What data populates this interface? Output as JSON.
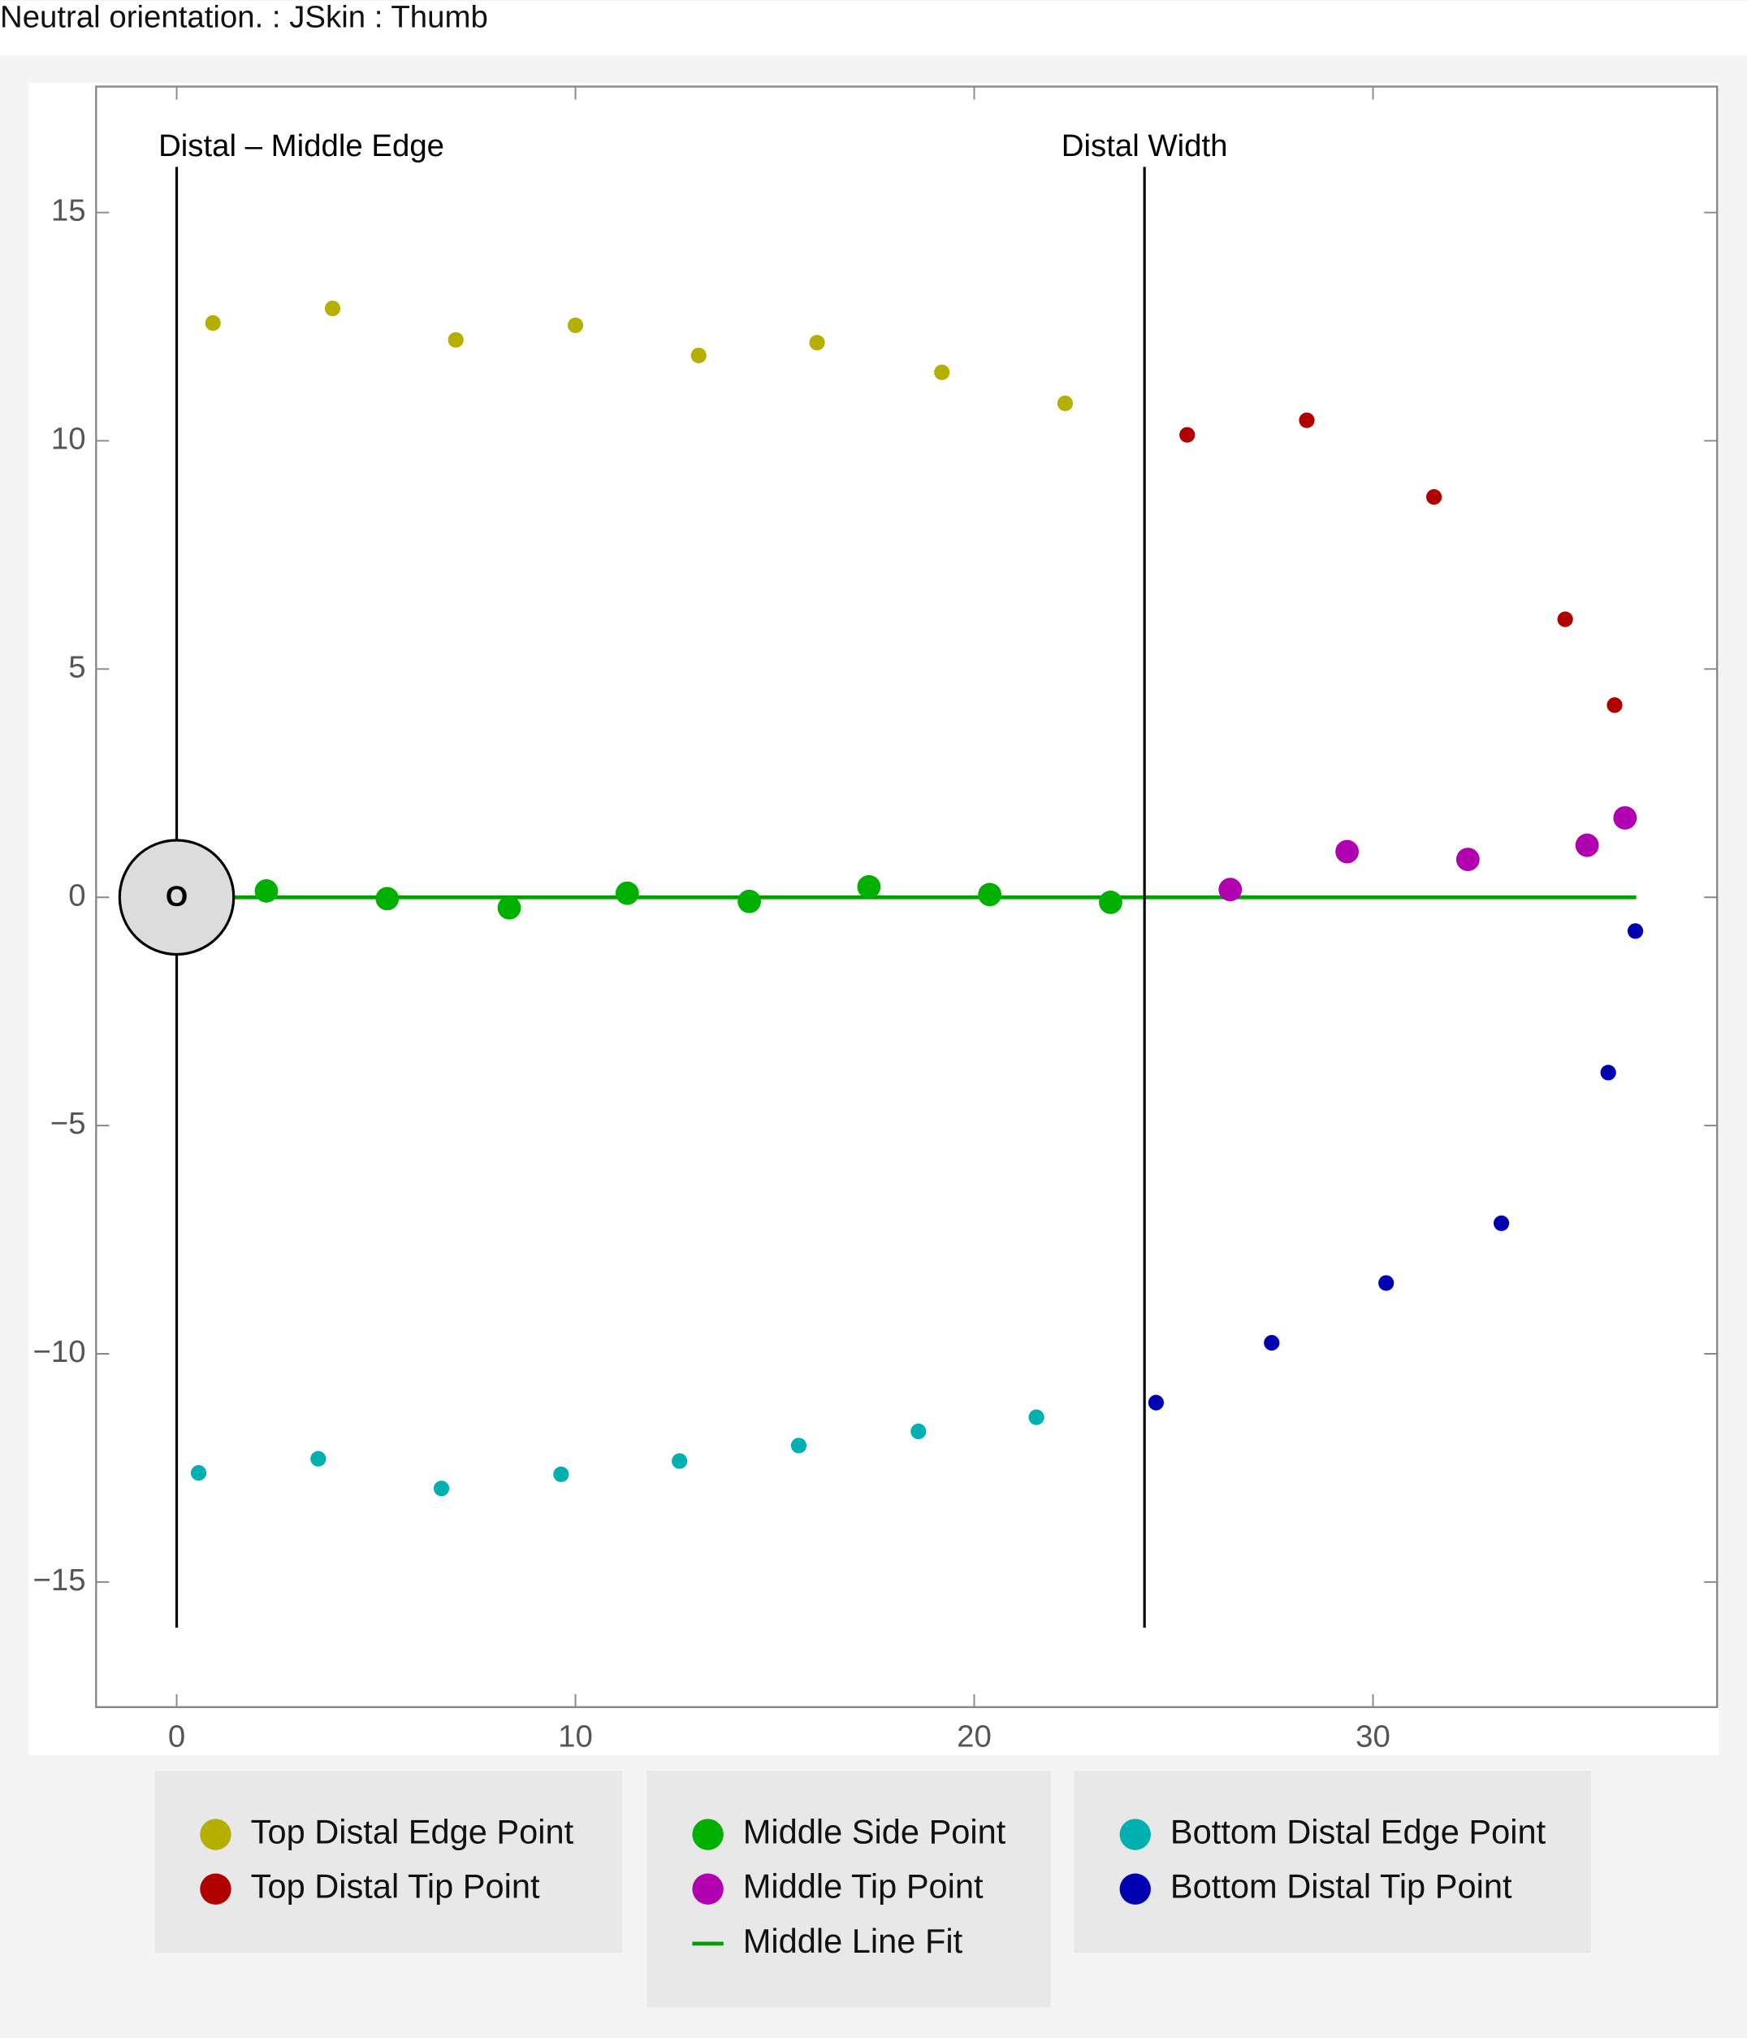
{
  "chart_data": {
    "type": "scatter",
    "title": "Neutral orientation. : JSkin : Thumb",
    "xlim": [
      -2.02,
      38.63
    ],
    "ylim": [
      -17.74,
      17.76
    ],
    "xticks": [
      0,
      10,
      20,
      30
    ],
    "yticks": [
      {
        "value": -15,
        "label": "−15"
      },
      {
        "value": -10,
        "label": "−10"
      },
      {
        "value": -5,
        "label": "−5"
      },
      0,
      5,
      10,
      15
    ],
    "series": [
      {
        "name": "Top Distal Edge Point",
        "color": "#b5b000",
        "x": [
          0.91,
          3.91,
          7.0,
          10.0,
          13.09,
          16.06,
          19.19,
          22.28
        ],
        "values": [
          12.58,
          12.9,
          12.21,
          12.53,
          11.87,
          12.15,
          11.5,
          10.82
        ]
      },
      {
        "name": "Top Distal Tip Point",
        "color": "#b00000",
        "x": [
          25.34,
          28.34,
          31.53,
          34.82,
          36.06
        ],
        "values": [
          10.13,
          10.45,
          8.77,
          6.09,
          4.21
        ]
      },
      {
        "name": "Middle Side Point",
        "color": "#00b000",
        "x": [
          2.25,
          5.28,
          8.34,
          11.3,
          14.36,
          17.36,
          20.39,
          23.42
        ],
        "values": [
          0.14,
          -0.03,
          -0.23,
          0.09,
          -0.09,
          0.23,
          0.06,
          -0.11
        ]
      },
      {
        "name": "Middle Tip Point",
        "color": "#b000b0",
        "x": [
          26.42,
          29.35,
          32.38,
          35.37,
          36.32
        ],
        "values": [
          0.17,
          1.0,
          0.83,
          1.14,
          1.74
        ]
      },
      {
        "name": "Middle Line Fit",
        "color": "#00a000",
        "line": true,
        "x": [
          0,
          36.6
        ],
        "values": [
          0,
          0
        ]
      },
      {
        "name": "Bottom Distal Edge Point",
        "color": "#00b0b0",
        "x": [
          0.55,
          3.55,
          6.64,
          9.64,
          12.61,
          15.6,
          18.6,
          21.56
        ],
        "values": [
          -12.61,
          -12.3,
          -12.95,
          -12.64,
          -12.35,
          -12.01,
          -11.7,
          -11.39
        ]
      },
      {
        "name": "Bottom Distal Tip Point",
        "color": "#0000b0",
        "x": [
          24.56,
          27.46,
          30.33,
          33.22,
          35.9,
          36.58
        ],
        "values": [
          -11.07,
          -9.76,
          -8.45,
          -7.14,
          -3.84,
          -0.74
        ]
      }
    ],
    "annotations": [
      {
        "label": "Distal – Middle Edge",
        "x": 0,
        "ymin": -16,
        "ymax": 16
      },
      {
        "label": "Distal Width",
        "x": 24.27,
        "ymin": -16,
        "ymax": 16
      }
    ],
    "origin_marker": {
      "label": "O",
      "x": 0,
      "y": 0,
      "radius": 1.43
    }
  }
}
